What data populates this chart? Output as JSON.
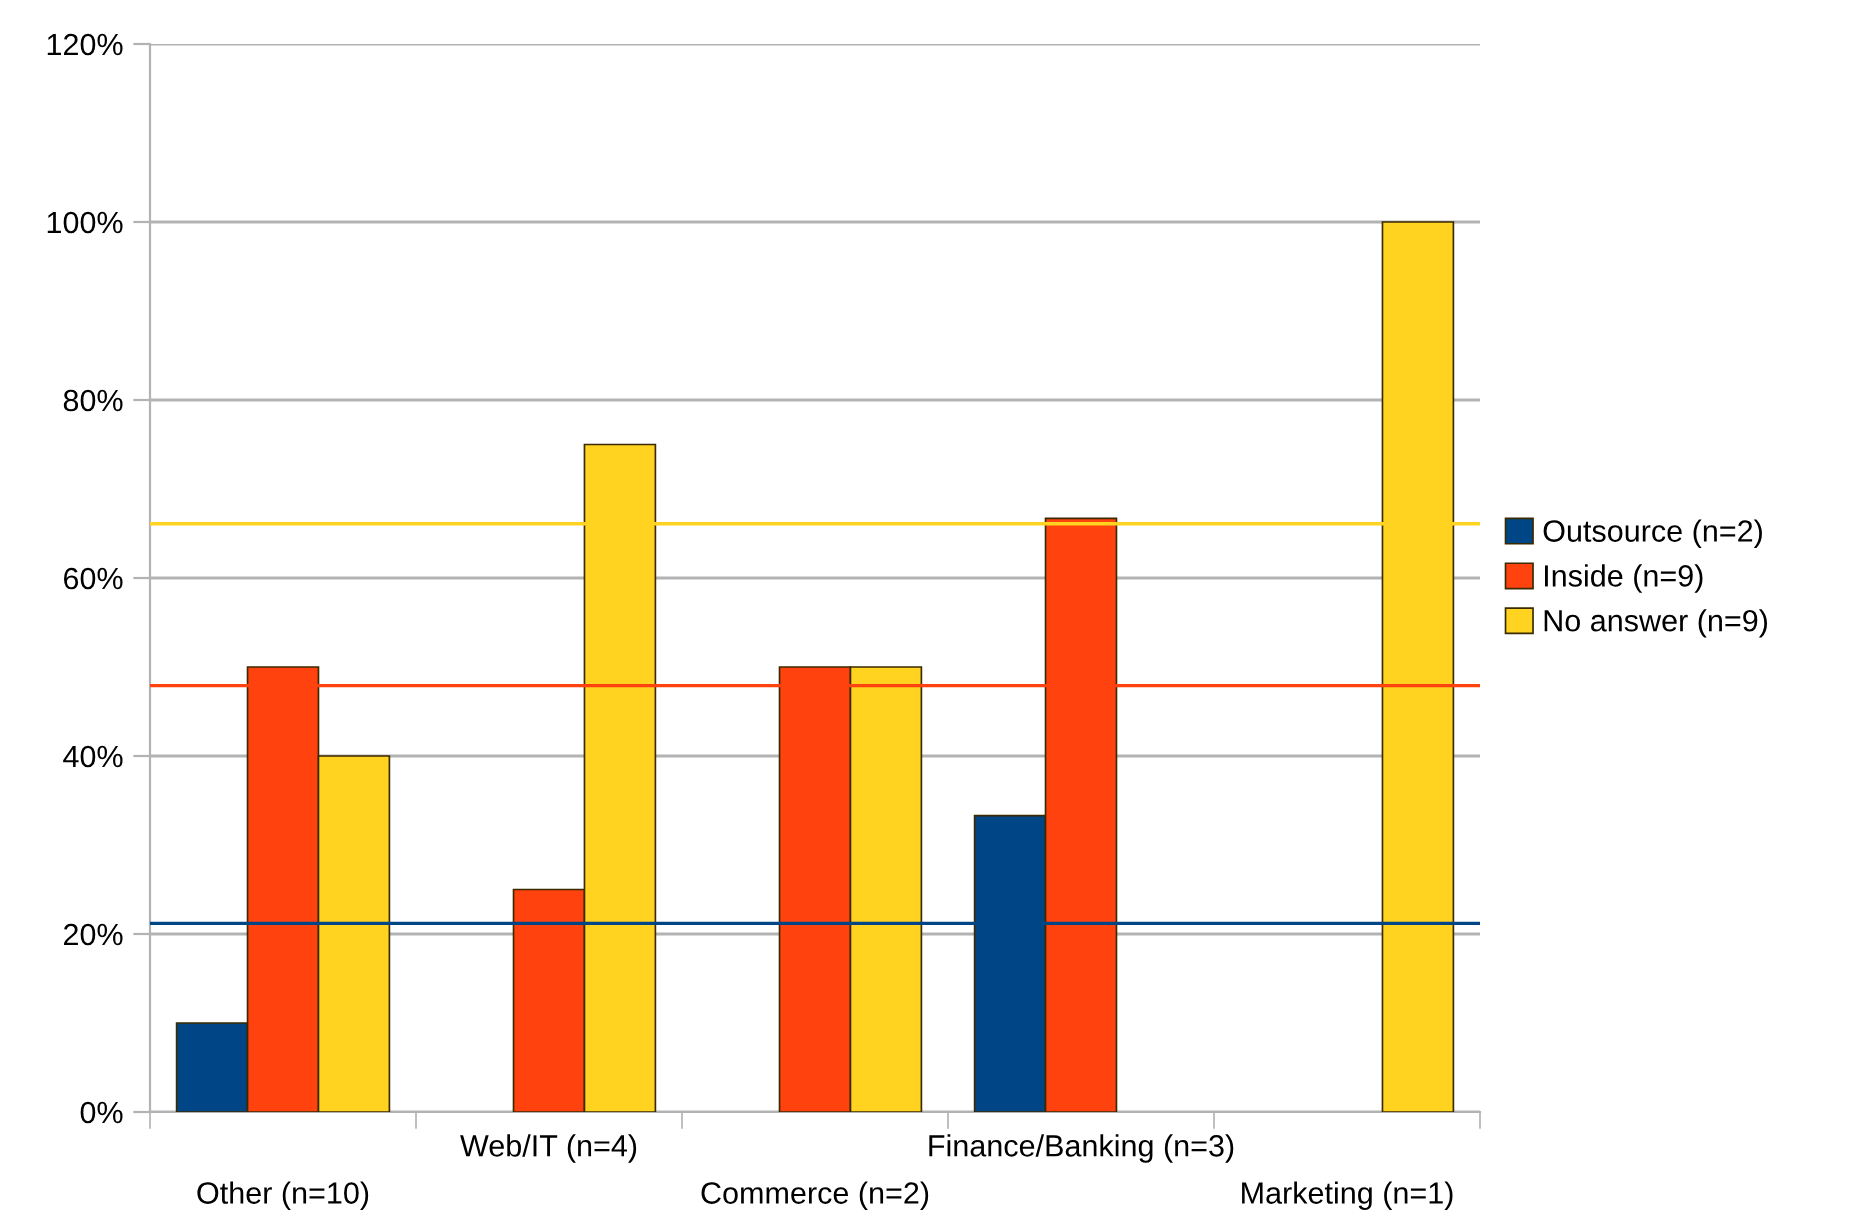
{
  "chart_data": {
    "type": "bar",
    "categories": [
      "Other (n=10)",
      "Web/IT (n=4)",
      "Commerce (n=2)",
      "Finance/Banking (n=3)",
      "Marketing (n=1)"
    ],
    "series": [
      {
        "name": "Outsource (n=2)",
        "color": "#004586",
        "values": [
          10,
          null,
          null,
          33.3,
          null
        ]
      },
      {
        "name": "Inside (n=9)",
        "color": "#ff420e",
        "values": [
          50,
          25,
          50,
          66.7,
          null
        ]
      },
      {
        "name": "No answer (n=9)",
        "color": "#ffd320",
        "values": [
          40,
          75,
          50,
          null,
          100
        ]
      }
    ],
    "ylim": [
      0,
      120
    ],
    "yticks": [
      {
        "value": 0,
        "label": "0%"
      },
      {
        "value": 20,
        "label": "20%"
      },
      {
        "value": 40,
        "label": "40%"
      },
      {
        "value": 60,
        "label": "60%"
      },
      {
        "value": 80,
        "label": "80%"
      },
      {
        "value": 100,
        "label": "100%"
      },
      {
        "value": 120,
        "label": "120%"
      }
    ],
    "ref_lines": [
      {
        "axis": "y",
        "value": 21.2,
        "color": "#004586"
      },
      {
        "axis": "y",
        "value": 47.9,
        "color": "#ff420e"
      },
      {
        "axis": "y",
        "value": 66.1,
        "color": "#ffd320"
      }
    ],
    "grid": "y",
    "legend": "right"
  }
}
